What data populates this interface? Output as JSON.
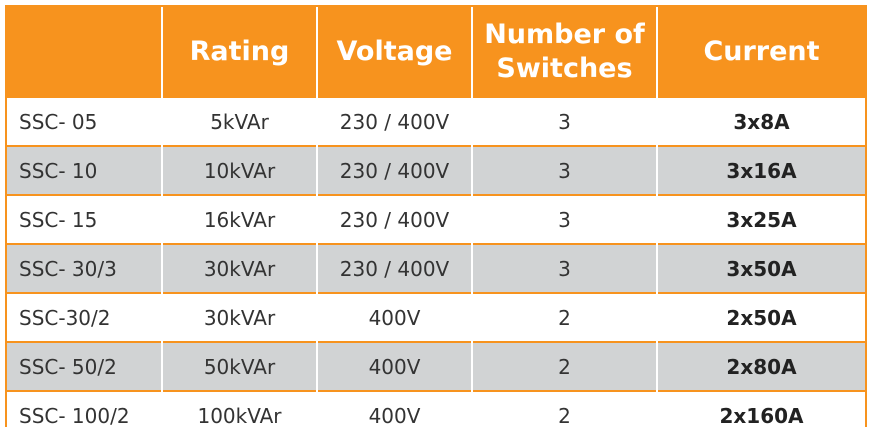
{
  "table": {
    "headers": [
      "",
      "Rating",
      "Voltage",
      "Number of Switches",
      "Current"
    ],
    "rows": [
      [
        "SSC- 05",
        "5kVAr",
        "230 / 400V",
        "3",
        "3x8A"
      ],
      [
        "SSC- 10",
        "10kVAr",
        "230 / 400V",
        "3",
        "3x16A"
      ],
      [
        "SSC- 15",
        "16kVAr",
        "230 / 400V",
        "3",
        "3x25A"
      ],
      [
        "SSC- 30/3",
        "30kVAr",
        "230 / 400V",
        "3",
        "3x50A"
      ],
      [
        "SSC-30/2",
        "30kVAr",
        "400V",
        "2",
        "2x50A"
      ],
      [
        "SSC- 50/2",
        "50kVAr",
        "400V",
        "2",
        "2x80A"
      ],
      [
        "SSC- 100/2",
        "100kVAr",
        "400V",
        "2",
        "2x160A"
      ]
    ]
  },
  "colors": {
    "header_bg": "#f7931e",
    "header_text": "#ffffff",
    "row_alt_bg": "#d1d3d4",
    "row_bg": "#ffffff"
  }
}
